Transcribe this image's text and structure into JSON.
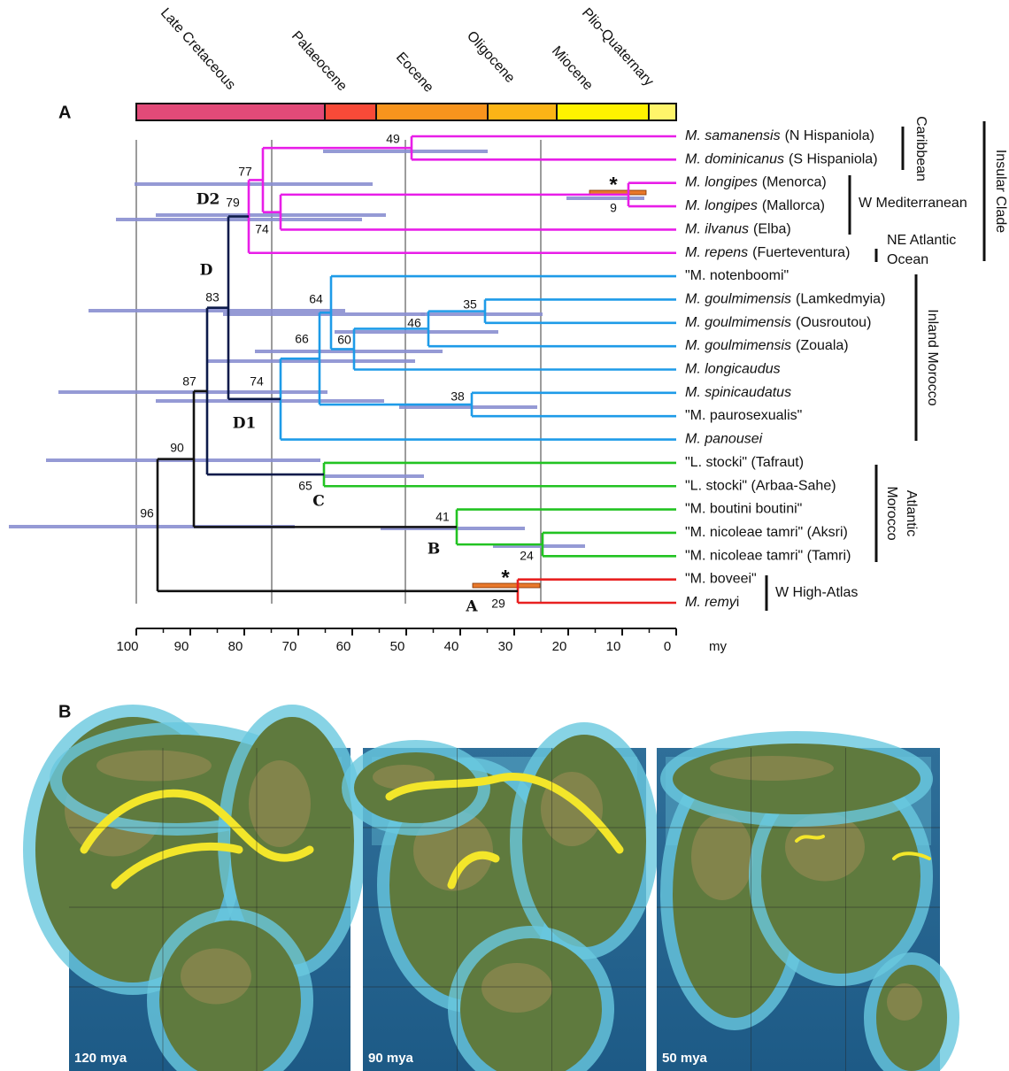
{
  "panel_a": {
    "label": "A",
    "periods": [
      {
        "name": "Late Cretaceous",
        "color": "#e24a78"
      },
      {
        "name": "Palaeocene",
        "color": "#f84a38"
      },
      {
        "name": "Eocene",
        "color": "#f7941d"
      },
      {
        "name": "Oligocene",
        "color": "#fbb416"
      },
      {
        "name": "Miocene",
        "color": "#fff200"
      },
      {
        "name": "Plio-Quaternary",
        "color": "#fff56a"
      }
    ],
    "xlim": [
      100,
      0
    ],
    "xticks": [
      100,
      90,
      80,
      70,
      60,
      50,
      40,
      30,
      20,
      10,
      0
    ],
    "x_unit": "my",
    "taxa": [
      {
        "italic": "M. samanensis",
        "roman": "(N Hispaniola)"
      },
      {
        "italic": "M. dominicanus",
        "roman": "(S Hispaniola)"
      },
      {
        "italic": "M. longipes",
        "roman": "(Menorca)"
      },
      {
        "italic": "M. longipes",
        "roman": "(Mallorca)"
      },
      {
        "italic": "M. ilvanus",
        "roman": "(Elba)"
      },
      {
        "italic": "M. repens",
        "roman": "(Fuerteventura)"
      },
      {
        "roman": "\"M. notenboomi\""
      },
      {
        "italic": "M. goulmimensis",
        "roman": "(Lamkedmyia)"
      },
      {
        "italic": "M. goulmimensis",
        "roman": "(Ousroutou)"
      },
      {
        "italic": "M. goulmimensis",
        "roman": "(Zouala)"
      },
      {
        "italic": "M. longicaudus"
      },
      {
        "italic": "M. spinicaudatus"
      },
      {
        "roman": "\"M. paurosexualis\""
      },
      {
        "italic": "M. panousei"
      },
      {
        "roman": "\"L. stocki\" (Tafraut)"
      },
      {
        "roman": "\"L. stocki\" (Arbaa-Sahe)"
      },
      {
        "roman": "\"M. boutini boutini\""
      },
      {
        "roman": "\"M. nicoleae tamri\" (Aksri)"
      },
      {
        "roman": "\"M. nicoleae tamri\" (Tamri)"
      },
      {
        "roman": "\"M. boveei\""
      },
      {
        "italic": "M. remy",
        "roman": "i"
      }
    ],
    "node_labels": [
      49,
      9,
      74,
      79,
      77,
      83,
      64,
      35,
      46,
      60,
      66,
      38,
      74,
      87,
      65,
      41,
      24,
      90,
      96,
      29
    ],
    "clades": [
      {
        "name": "D2",
        "color": "#a8407e"
      },
      {
        "name": "D",
        "color": "#808080"
      },
      {
        "name": "D1",
        "color": "#1e8fe0"
      },
      {
        "name": "C",
        "color": "#2a9a2a"
      },
      {
        "name": "B",
        "color": "#2a9a2a"
      },
      {
        "name": "A",
        "color": "#c8281e"
      }
    ],
    "asterisks": [
      "*",
      "*"
    ],
    "groups": [
      {
        "lines": [
          "Caribbean"
        ]
      },
      {
        "lines": [
          "W Mediterranean"
        ]
      },
      {
        "lines": [
          "NE Atlantic",
          "Ocean"
        ]
      },
      {
        "lines": [
          "Insular Clade"
        ]
      },
      {
        "lines": [
          "Inland Morocco"
        ]
      },
      {
        "lines": [
          "Atlantic",
          "Morocco"
        ]
      },
      {
        "lines": [
          "W High-Atlas"
        ]
      }
    ]
  },
  "panel_b": {
    "label": "B",
    "maps": [
      "120 mya",
      "90 mya",
      "50 mya"
    ]
  }
}
